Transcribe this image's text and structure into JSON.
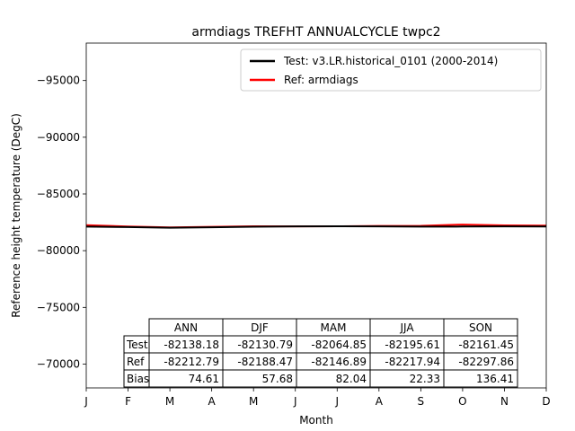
{
  "chart_data": {
    "type": "line",
    "title": "armdiags TREFHT ANNUALCYCLE twpc2",
    "xlabel": "Month",
    "ylabel": "Reference height temperature (DegC)",
    "x": [
      1,
      2,
      3,
      4,
      5,
      6,
      7,
      8,
      9,
      10,
      11,
      12
    ],
    "x_tick_labels": [
      "J",
      "F",
      "M",
      "A",
      "M",
      "J",
      "J",
      "A",
      "S",
      "O",
      "N",
      "D"
    ],
    "xlim": [
      1,
      12
    ],
    "ylim": [
      -67900,
      -98300
    ],
    "y_ticks": [
      -95000,
      -90000,
      -85000,
      -80000,
      -75000,
      -70000
    ],
    "y_tick_labels": [
      "−95000",
      "−90000",
      "−85000",
      "−80000",
      "−75000",
      "−70000"
    ],
    "series": [
      {
        "name": "Test: v3.LR.historical_0101 (2000-2014)",
        "color": "#000000",
        "values": [
          -82120,
          -82080,
          -82020,
          -82060,
          -82110,
          -82140,
          -82150,
          -82140,
          -82120,
          -82130,
          -82140,
          -82130
        ]
      },
      {
        "name": "Ref: armdiags",
        "color": "#ff0000",
        "values": [
          -82250,
          -82130,
          -82050,
          -82100,
          -82150,
          -82140,
          -82150,
          -82180,
          -82190,
          -82300,
          -82230,
          -82210
        ]
      }
    ],
    "legend_position": "top-right",
    "table": {
      "columns": [
        "ANN",
        "DJF",
        "MAM",
        "JJA",
        "SON"
      ],
      "rows": [
        {
          "label": "Test",
          "values": [
            "-82138.18",
            "-82130.79",
            "-82064.85",
            "-82195.61",
            "-82161.45"
          ]
        },
        {
          "label": "Ref",
          "values": [
            "-82212.79",
            "-82188.47",
            "-82146.89",
            "-82217.94",
            "-82297.86"
          ]
        },
        {
          "label": "Bias",
          "values": [
            "74.61",
            "57.68",
            "82.04",
            "22.33",
            "136.41"
          ]
        }
      ]
    }
  }
}
